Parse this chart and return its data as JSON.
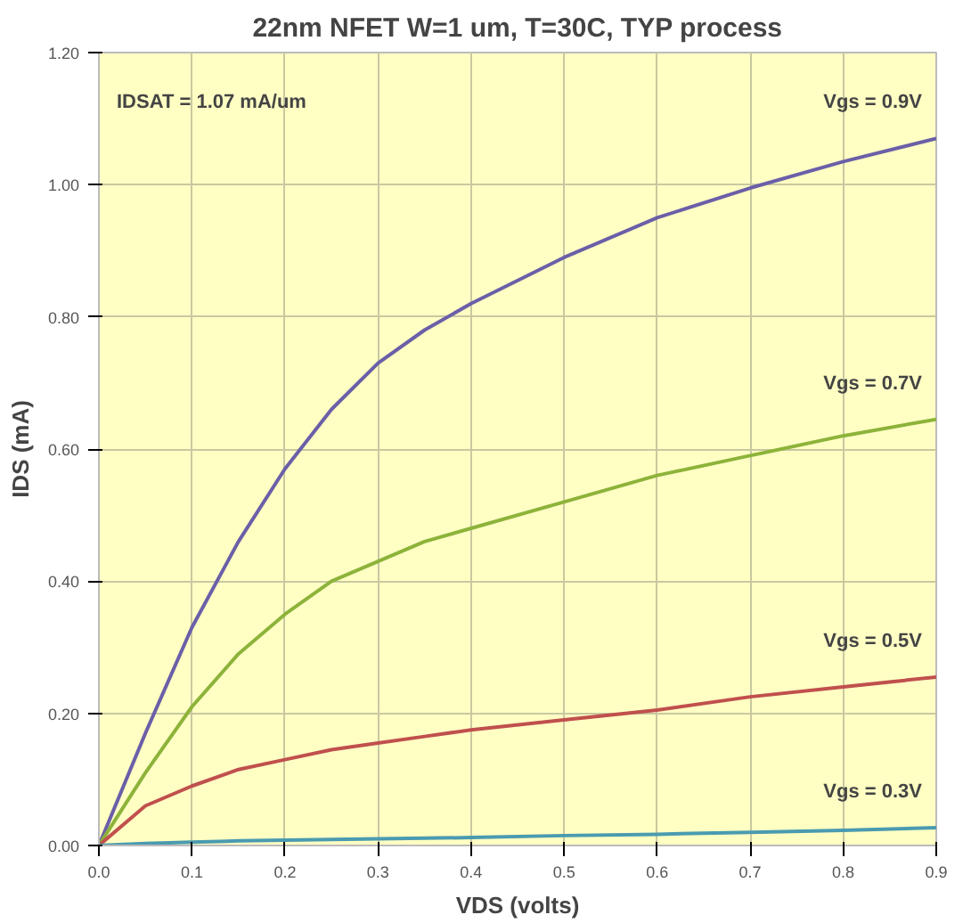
{
  "chart_data": {
    "type": "line",
    "title": "22nm NFET W=1 um, T=30C, TYP process",
    "xlabel": "VDS (volts)",
    "ylabel": "IDS (mA)",
    "x": [
      0,
      0.05,
      0.1,
      0.15,
      0.2,
      0.25,
      0.3,
      0.35,
      0.4,
      0.5,
      0.6,
      0.7,
      0.8,
      0.9
    ],
    "series": [
      {
        "name": "Vgs = 0.9V",
        "color": "#6b5fa8",
        "values": [
          0,
          0.17,
          0.33,
          0.46,
          0.57,
          0.66,
          0.73,
          0.78,
          0.82,
          0.89,
          0.95,
          0.995,
          1.035,
          1.07
        ]
      },
      {
        "name": "Vgs = 0.7V",
        "color": "#8db33a",
        "values": [
          0,
          0.11,
          0.21,
          0.29,
          0.35,
          0.4,
          0.43,
          0.46,
          0.48,
          0.52,
          0.56,
          0.59,
          0.62,
          0.645
        ]
      },
      {
        "name": "Vgs = 0.5V",
        "color": "#c0504d",
        "values": [
          0,
          0.06,
          0.09,
          0.115,
          0.13,
          0.145,
          0.155,
          0.165,
          0.175,
          0.19,
          0.205,
          0.225,
          0.24,
          0.255
        ]
      },
      {
        "name": "Vgs = 0.3V",
        "color": "#4a9bb0",
        "values": [
          0,
          0.003,
          0.005,
          0.007,
          0.008,
          0.009,
          0.01,
          0.011,
          0.012,
          0.015,
          0.017,
          0.02,
          0.023,
          0.027
        ]
      }
    ],
    "annotations": [
      "IDSAT = 1.07 mA/um"
    ],
    "xlim": [
      0,
      0.9
    ],
    "xticks": [
      {
        "value": 0,
        "label": "0.0"
      },
      0.1,
      0.2,
      0.3,
      0.4,
      0.5,
      0.6,
      0.7,
      0.8,
      0.9
    ],
    "ylim": [
      0,
      1.2
    ],
    "yticks": [
      {
        "value": 0,
        "label": "0.00"
      },
      {
        "value": 0.2,
        "label": "0.20"
      },
      {
        "value": 0.4,
        "label": "0.40"
      },
      {
        "value": 0.6,
        "label": "0.60"
      },
      {
        "value": 0.8,
        "label": "0.80"
      },
      {
        "value": 1.0,
        "label": "1.00"
      },
      {
        "value": 1.2,
        "label": "1.20"
      }
    ],
    "grid": true,
    "marker": "none",
    "line_style": "solid"
  }
}
